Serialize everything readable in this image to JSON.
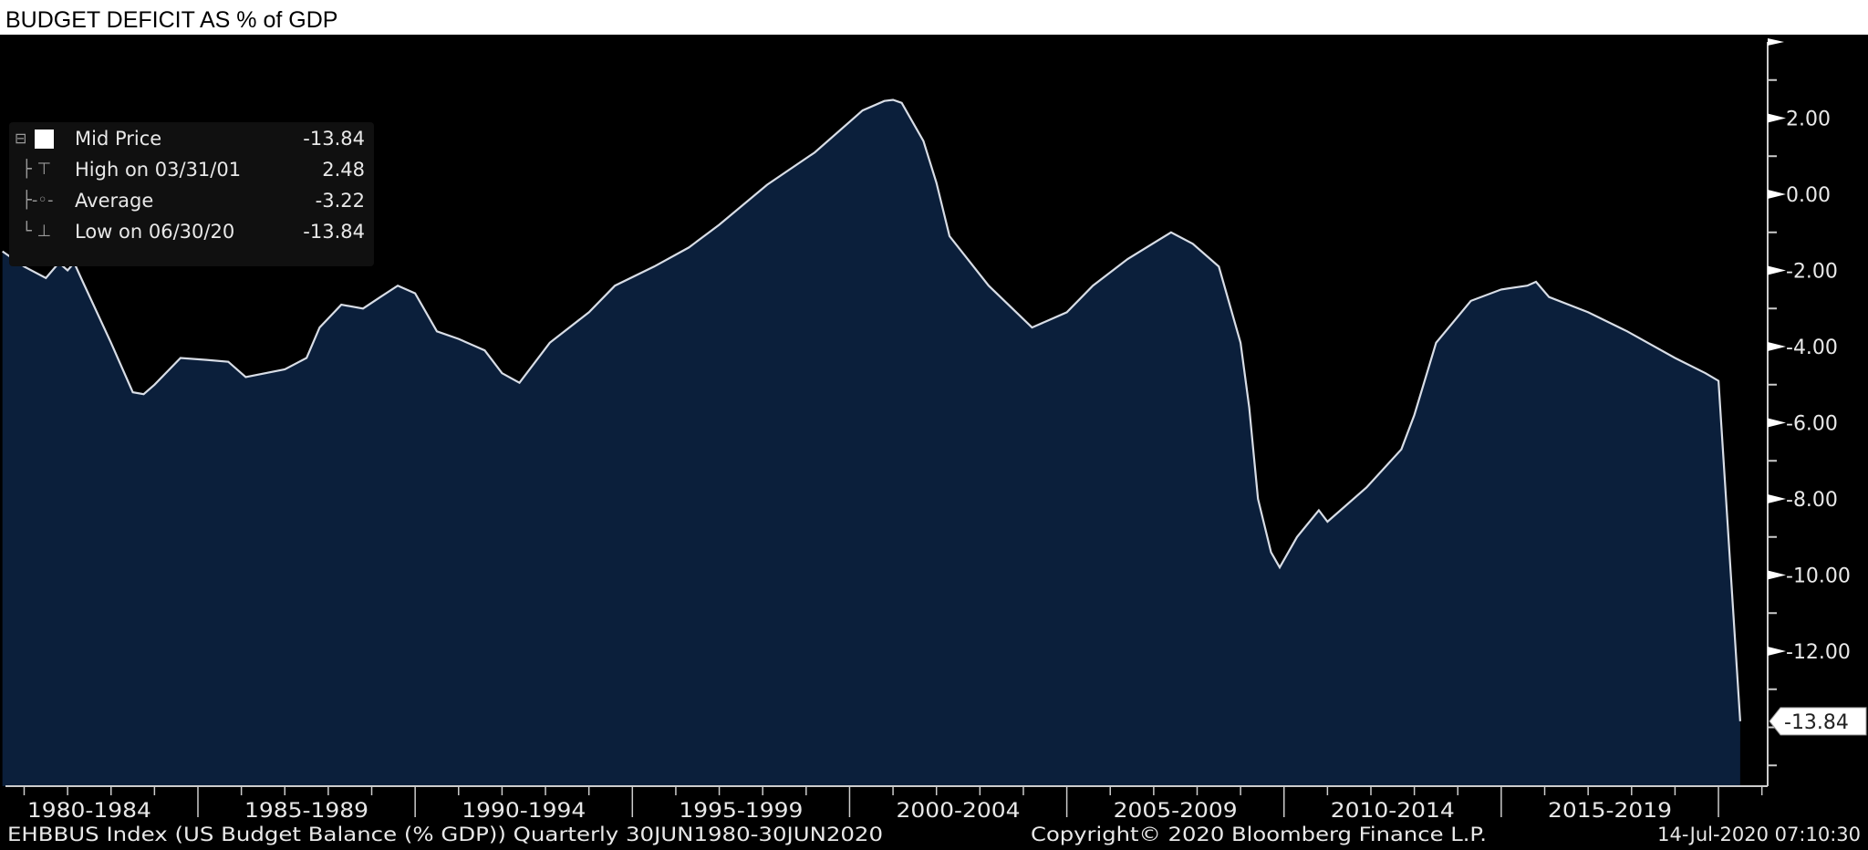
{
  "title": "BUDGET DEFICIT AS % of GDP",
  "legend": {
    "items": [
      {
        "label": "Mid Price",
        "value": "-13.84",
        "icon": "white-square-icon"
      },
      {
        "label": "High on 03/31/01",
        "value": "2.48",
        "icon": "high-marker-icon"
      },
      {
        "label": "Average",
        "value": "-3.22",
        "icon": "average-marker-icon"
      },
      {
        "label": "Low on 06/30/20",
        "value": "-13.84",
        "icon": "low-marker-icon"
      }
    ]
  },
  "footer": {
    "source": "EHBBUS Index (US Budget Balance (% GDP))  Quarterly 30JUN1980-30JUN2020",
    "copyright": "Copyright© 2020 Bloomberg Finance L.P.",
    "timestamp": "14-Jul-2020 07:10:30"
  },
  "colors": {
    "fill": "#0b1f3b",
    "line": "#d8dde6",
    "background": "#000000",
    "text": "#e8e8e8"
  },
  "chart_data": {
    "type": "area",
    "title": "BUDGET DEFICIT AS % of GDP",
    "xlabel": "",
    "ylabel": "",
    "xlim": [
      1980.5,
      2021.7
    ],
    "ylim": [
      -15.55,
      4.0
    ],
    "yticks": [
      2,
      0,
      -2,
      -4,
      -6,
      -8,
      -10,
      -12
    ],
    "ytick_labels": [
      "2.00",
      "0.00",
      "-2.00",
      "-4.00",
      "-6.00",
      "-8.00",
      "-10.00",
      "-12.00"
    ],
    "last_value_label": "-13.84",
    "last_value": -13.84,
    "x_periods": [
      {
        "label": "1980-1984",
        "start": 1980,
        "end": 1985
      },
      {
        "label": "1985-1989",
        "start": 1985,
        "end": 1990
      },
      {
        "label": "1990-1994",
        "start": 1990,
        "end": 1995
      },
      {
        "label": "1995-1999",
        "start": 1995,
        "end": 2000
      },
      {
        "label": "2000-2004",
        "start": 2000,
        "end": 2005
      },
      {
        "label": "2005-2009",
        "start": 2005,
        "end": 2010
      },
      {
        "label": "2010-2014",
        "start": 2010,
        "end": 2015
      },
      {
        "label": "2015-2019",
        "start": 2015,
        "end": 2020
      }
    ],
    "series": [
      {
        "name": "Mid Price",
        "points": [
          [
            1980.5,
            -1.5
          ],
          [
            1981.0,
            -1.9
          ],
          [
            1981.5,
            -2.2
          ],
          [
            1981.8,
            -1.8
          ],
          [
            1982.0,
            -2.0
          ],
          [
            1982.15,
            -1.8
          ],
          [
            1982.35,
            -2.3
          ],
          [
            1983.0,
            -3.9
          ],
          [
            1983.5,
            -5.2
          ],
          [
            1983.75,
            -5.25
          ],
          [
            1984.0,
            -5.0
          ],
          [
            1984.6,
            -4.3
          ],
          [
            1985.2,
            -4.35
          ],
          [
            1985.7,
            -4.4
          ],
          [
            1986.1,
            -4.8
          ],
          [
            1987.0,
            -4.6
          ],
          [
            1987.5,
            -4.3
          ],
          [
            1987.8,
            -3.5
          ],
          [
            1988.3,
            -2.9
          ],
          [
            1988.8,
            -3.0
          ],
          [
            1989.2,
            -2.7
          ],
          [
            1989.6,
            -2.4
          ],
          [
            1990.0,
            -2.6
          ],
          [
            1990.5,
            -3.6
          ],
          [
            1991.0,
            -3.8
          ],
          [
            1991.6,
            -4.1
          ],
          [
            1992.0,
            -4.7
          ],
          [
            1992.4,
            -4.95
          ],
          [
            1993.1,
            -3.9
          ],
          [
            1994.0,
            -3.1
          ],
          [
            1994.6,
            -2.4
          ],
          [
            1995.5,
            -1.9
          ],
          [
            1996.3,
            -1.4
          ],
          [
            1997.0,
            -0.8
          ],
          [
            1998.1,
            0.25
          ],
          [
            1999.2,
            1.1
          ],
          [
            2000.3,
            2.2
          ],
          [
            2000.8,
            2.45
          ],
          [
            2001.0,
            2.48
          ],
          [
            2001.2,
            2.4
          ],
          [
            2001.7,
            1.4
          ],
          [
            2002.0,
            0.3
          ],
          [
            2002.3,
            -1.1
          ],
          [
            2003.2,
            -2.4
          ],
          [
            2004.2,
            -3.5
          ],
          [
            2005.0,
            -3.1
          ],
          [
            2005.6,
            -2.4
          ],
          [
            2006.4,
            -1.7
          ],
          [
            2007.4,
            -1.0
          ],
          [
            2007.9,
            -1.3
          ],
          [
            2008.5,
            -1.9
          ],
          [
            2009.0,
            -3.9
          ],
          [
            2009.2,
            -5.6
          ],
          [
            2009.4,
            -8.0
          ],
          [
            2009.7,
            -9.4
          ],
          [
            2009.9,
            -9.8
          ],
          [
            2010.3,
            -9.0
          ],
          [
            2010.8,
            -8.3
          ],
          [
            2011.0,
            -8.6
          ],
          [
            2011.9,
            -7.7
          ],
          [
            2012.7,
            -6.7
          ],
          [
            2013.0,
            -5.8
          ],
          [
            2013.5,
            -3.9
          ],
          [
            2014.3,
            -2.8
          ],
          [
            2015.0,
            -2.5
          ],
          [
            2015.6,
            -2.4
          ],
          [
            2015.8,
            -2.3
          ],
          [
            2016.1,
            -2.7
          ],
          [
            2017.0,
            -3.1
          ],
          [
            2017.9,
            -3.6
          ],
          [
            2019.0,
            -4.3
          ],
          [
            2019.7,
            -4.7
          ],
          [
            2020.0,
            -4.9
          ],
          [
            2020.5,
            -13.84
          ]
        ]
      }
    ]
  }
}
